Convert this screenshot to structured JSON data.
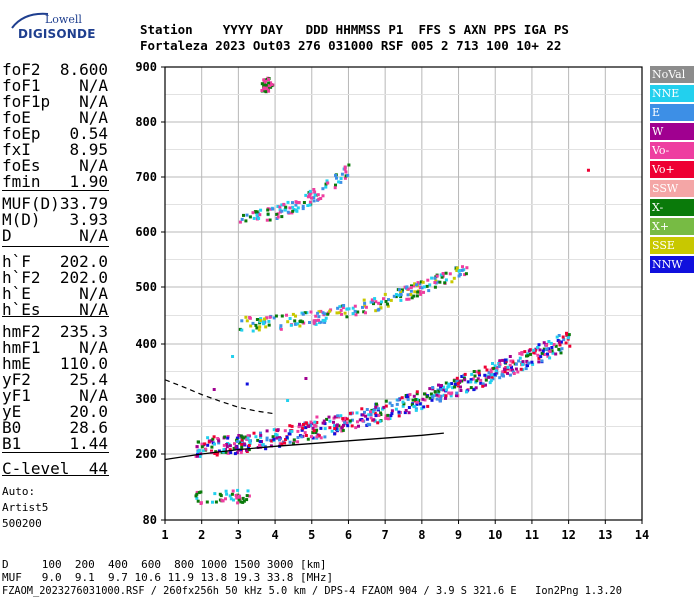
{
  "logo": {
    "top": "Lowell",
    "bottom": "DIGISONDE"
  },
  "header": {
    "labels": "Station    YYYY DAY   DDD HHMMSS P1  FFS S AXN PPS IGA PS",
    "values": "Fortaleza 2023 Out03 276 031000 RSF 005 2 713 100 10+ 22"
  },
  "params": [
    {
      "label": "foF2",
      "value": "8.600"
    },
    {
      "label": "foF1",
      "value": "N/A"
    },
    {
      "label": "foF1p",
      "value": "N/A"
    },
    {
      "label": "foE",
      "value": "N/A"
    },
    {
      "label": "foEp",
      "value": "0.54"
    },
    {
      "label": "fxI",
      "value": "8.95"
    },
    {
      "label": "foEs",
      "value": "N/A"
    },
    {
      "label": "fmin",
      "value": "1.90"
    },
    {
      "label": "MUF(D)",
      "value": "33.79"
    },
    {
      "label": "M(D)",
      "value": "3.93"
    },
    {
      "label": "D",
      "value": "N/A"
    },
    {
      "label": "h`F",
      "value": "202.0"
    },
    {
      "label": "h`F2",
      "value": "202.0"
    },
    {
      "label": "h`E",
      "value": "N/A"
    },
    {
      "label": "h`Es",
      "value": "N/A"
    },
    {
      "label": "hmF2",
      "value": "235.3"
    },
    {
      "label": "hmF1",
      "value": "N/A"
    },
    {
      "label": "hmE",
      "value": "110.0"
    },
    {
      "label": "yF2",
      "value": "25.4"
    },
    {
      "label": "yF1",
      "value": "N/A"
    },
    {
      "label": "yE",
      "value": "20.0"
    },
    {
      "label": "B0",
      "value": "28.6"
    },
    {
      "label": "B1",
      "value": "1.44"
    },
    {
      "label": "C-level",
      "value": "44"
    }
  ],
  "auto": {
    "line1": "Auto:",
    "line2": "Artist5",
    "line3": "500200"
  },
  "legend": [
    {
      "label": "NoVal",
      "color": "#8c8c8c"
    },
    {
      "label": "NNE",
      "color": "#22d0ee"
    },
    {
      "label": "E",
      "color": "#3d8fe6"
    },
    {
      "label": "W",
      "color": "#a00090"
    },
    {
      "label": "Vo-",
      "color": "#ee3ea0"
    },
    {
      "label": "Vo+",
      "color": "#ee0033"
    },
    {
      "label": "SSW",
      "color": "#f4a6a6"
    },
    {
      "label": "X-",
      "color": "#0a7a0a"
    },
    {
      "label": "X+",
      "color": "#77bb44"
    },
    {
      "label": "SSE",
      "color": "#c8c800"
    },
    {
      "label": "NNW",
      "color": "#1010dd"
    }
  ],
  "bottom": {
    "d_row": "D     100  200  400  600  800 1000 1500 3000 [km]",
    "muf_row": "MUF   9.0  9.1  9.7 10.6 11.9 13.8 19.3 33.8 [MHz]",
    "footer": "FZAOM_2023276031000.RSF / 260fx256h 50 kHz 5.0 km / DPS-4 FZAOM 904 / 3.9 S 321.6 E   Ion2Png 1.3.20"
  },
  "chart_data": {
    "type": "scatter",
    "xlim": [
      1,
      14
    ],
    "ylim": [
      80,
      900
    ],
    "xticks": [
      1,
      2,
      3,
      4,
      5,
      6,
      7,
      8,
      9,
      10,
      11,
      12,
      13,
      14
    ],
    "yticks": [
      80,
      200,
      300,
      400,
      500,
      600,
      700,
      800,
      900
    ],
    "grid": true,
    "traces": [
      {
        "name": "F2 O-trace (1st hop)",
        "x_range": [
          1.8,
          12.0
        ],
        "y_start": 205,
        "y_end": 400,
        "colors": [
          "#ee3ea0",
          "#a00090",
          "#0a7a0a",
          "#22d0ee",
          "#3d8fe6",
          "#ee0033",
          "#1010dd"
        ]
      },
      {
        "name": "F2 2nd hop",
        "x_range": [
          3.0,
          9.2
        ],
        "y_start": 430,
        "y_end": 530,
        "colors": [
          "#ee3ea0",
          "#22d0ee",
          "#0a7a0a",
          "#c8c800",
          "#3d8fe6"
        ]
      },
      {
        "name": "F2 3rd hop",
        "x_range": [
          3.0,
          6.0
        ],
        "y_start": 620,
        "y_end": 710,
        "colors": [
          "#22d0ee",
          "#3d8fe6",
          "#ee3ea0",
          "#0a7a0a"
        ]
      },
      {
        "name": "E region echoes",
        "x_range": [
          1.8,
          3.3
        ],
        "y_start": 115,
        "y_end": 120,
        "colors": [
          "#0a7a0a",
          "#22d0ee",
          "#ee3ea0"
        ]
      },
      {
        "name": "upper echoes",
        "x_range": [
          3.6,
          3.9
        ],
        "y_start": 860,
        "y_end": 870,
        "colors": [
          "#ee3ea0",
          "#0a7a0a"
        ]
      }
    ],
    "profile": {
      "name": "electron density profile",
      "x": [
        1.0,
        2.0,
        3.0,
        4.0,
        5.0,
        6.0,
        7.0,
        8.0,
        8.6
      ],
      "y": [
        190,
        200,
        208,
        214,
        219,
        224,
        229,
        234,
        238
      ]
    },
    "dashed": {
      "name": "dashed model",
      "x": [
        1.0,
        1.5,
        2.0,
        2.5,
        3.0,
        3.5,
        4.0
      ],
      "y": [
        335,
        322,
        308,
        296,
        285,
        278,
        273
      ]
    }
  }
}
